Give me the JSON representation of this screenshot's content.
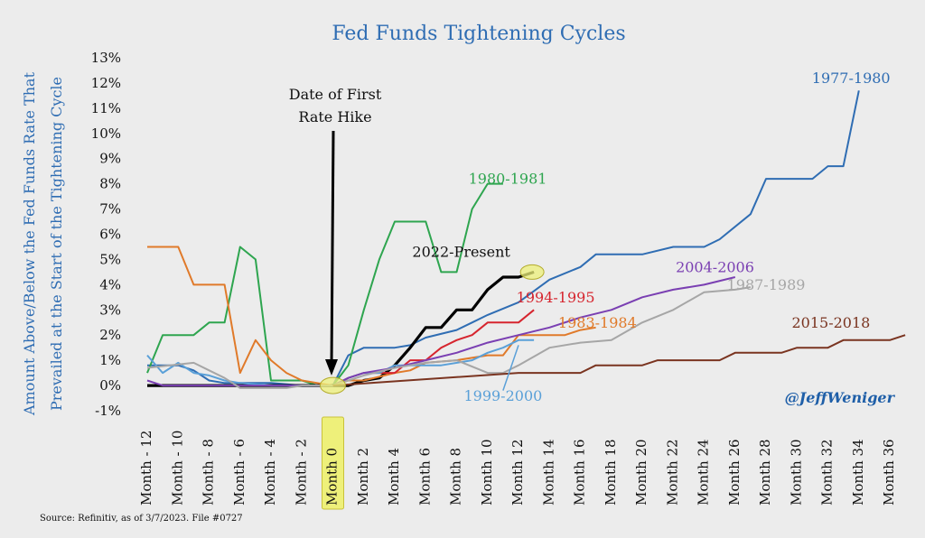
{
  "chart_data": {
    "type": "line",
    "title": "Fed Funds Tightening Cycles",
    "ylabel_line1": "Amount Above/Below the Fed Funds Rate That",
    "ylabel_line2": "Prevailed at the Start of the Tightening Cycle",
    "ylim": [
      -1,
      13
    ],
    "xlim": [
      -12,
      36
    ],
    "ytick_values": [
      -1,
      0,
      1,
      2,
      3,
      4,
      5,
      6,
      7,
      8,
      9,
      10,
      11,
      12,
      13
    ],
    "ytick_labels": [
      "-1%",
      "0%",
      "1%",
      "2%",
      "3%",
      "4%",
      "5%",
      "6%",
      "7%",
      "8%",
      "9%",
      "10%",
      "11%",
      "12%",
      "13%"
    ],
    "xtick_values": [
      -12,
      -10,
      -8,
      -6,
      -4,
      -2,
      0,
      2,
      4,
      6,
      8,
      10,
      12,
      14,
      16,
      18,
      20,
      22,
      24,
      26,
      28,
      30,
      32,
      34,
      36
    ],
    "xtick_labels": [
      "Month - 12",
      "Month - 10",
      "Month - 8",
      "Month - 6",
      "Month - 4",
      "Month - 2",
      "Month 0",
      "Month 2",
      "Month 4",
      "Month 6",
      "Month 8",
      "Month 10",
      "Month 12",
      "Month 14",
      "Month 16",
      "Month 18",
      "Month 20",
      "Month 22",
      "Month 24",
      "Month 26",
      "Month 28",
      "Month 30",
      "Month 32",
      "Month 34",
      "Month 36"
    ],
    "highlight_tick": "Month 0",
    "grid": false,
    "annotation": {
      "text_line1": "Date of First",
      "text_line2": "Rate Hike",
      "x": 0,
      "y": 0
    },
    "handle": "@JeffWeniger",
    "source": "Source: Refinitiv, as of 3/7/2023. File #0727",
    "series": [
      {
        "name": "1977-1980",
        "color": "#2f6db3",
        "points": [
          [
            -12,
            0.8
          ],
          [
            -10,
            0.8
          ],
          [
            -9,
            0.6
          ],
          [
            -8,
            0.2
          ],
          [
            -7,
            0.1
          ],
          [
            -6,
            0.1
          ],
          [
            -4,
            0.1
          ],
          [
            -2,
            0
          ],
          [
            0,
            0
          ],
          [
            1,
            1.2
          ],
          [
            2,
            1.5
          ],
          [
            4,
            1.5
          ],
          [
            5,
            1.6
          ],
          [
            6,
            1.9
          ],
          [
            8,
            2.2
          ],
          [
            9,
            2.5
          ],
          [
            10,
            2.8
          ],
          [
            12,
            3.3
          ],
          [
            14,
            4.2
          ],
          [
            16,
            4.7
          ],
          [
            17,
            5.2
          ],
          [
            20,
            5.2
          ],
          [
            22,
            5.5
          ],
          [
            24,
            5.5
          ],
          [
            25,
            5.8
          ],
          [
            27,
            6.8
          ],
          [
            28,
            8.2
          ],
          [
            31,
            8.2
          ],
          [
            32,
            8.7
          ],
          [
            33,
            8.7
          ],
          [
            34,
            11.7
          ]
        ]
      },
      {
        "name": "1980-1981",
        "color": "#2ea54f",
        "points": [
          [
            -12,
            0.5
          ],
          [
            -11,
            2
          ],
          [
            -9,
            2
          ],
          [
            -8,
            2.5
          ],
          [
            -7,
            2.5
          ],
          [
            -6,
            5.5
          ],
          [
            -5,
            5
          ],
          [
            -4,
            0.2
          ],
          [
            -2,
            0.2
          ],
          [
            -1,
            0
          ],
          [
            0,
            0
          ],
          [
            1,
            0.8
          ],
          [
            2,
            3
          ],
          [
            3,
            5
          ],
          [
            4,
            6.5
          ],
          [
            6,
            6.5
          ],
          [
            7,
            4.5
          ],
          [
            8,
            4.5
          ],
          [
            9,
            7
          ],
          [
            10,
            8
          ],
          [
            11,
            8
          ]
        ]
      },
      {
        "name": "2022-Present",
        "color": "#000000",
        "points": [
          [
            -12,
            0
          ],
          [
            -2,
            0
          ],
          [
            0,
            0
          ],
          [
            1,
            0
          ],
          [
            2,
            0.2
          ],
          [
            3,
            0.3
          ],
          [
            4,
            0.8
          ],
          [
            5,
            1.5
          ],
          [
            6,
            2.3
          ],
          [
            7,
            2.3
          ],
          [
            8,
            3
          ],
          [
            9,
            3
          ],
          [
            10,
            3.8
          ],
          [
            11,
            4.3
          ],
          [
            12,
            4.3
          ],
          [
            13,
            4.5
          ]
        ]
      },
      {
        "name": "1983-1984",
        "color": "#e07a2a",
        "points": [
          [
            -12,
            5.5
          ],
          [
            -10,
            5.5
          ],
          [
            -9,
            4
          ],
          [
            -7,
            4
          ],
          [
            -6,
            0.5
          ],
          [
            -5,
            1.8
          ],
          [
            -4,
            1
          ],
          [
            -3,
            0.5
          ],
          [
            -2,
            0.2
          ],
          [
            -1,
            0.1
          ],
          [
            0,
            0
          ],
          [
            1,
            0.2
          ],
          [
            2,
            0.2
          ],
          [
            4,
            0.5
          ],
          [
            5,
            0.6
          ],
          [
            6,
            0.9
          ],
          [
            8,
            1
          ],
          [
            10,
            1.2
          ],
          [
            11,
            1.2
          ],
          [
            12,
            2
          ],
          [
            15,
            2
          ],
          [
            16,
            2.2
          ],
          [
            17,
            2.3
          ]
        ]
      },
      {
        "name": "1994-1995",
        "color": "#d6252e",
        "points": [
          [
            0,
            0
          ],
          [
            1,
            0.3
          ],
          [
            2,
            0.5
          ],
          [
            4,
            0.5
          ],
          [
            5,
            1
          ],
          [
            6,
            1
          ],
          [
            7,
            1.5
          ],
          [
            8,
            1.8
          ],
          [
            9,
            2
          ],
          [
            10,
            2.5
          ],
          [
            12,
            2.5
          ],
          [
            13,
            3
          ]
        ]
      },
      {
        "name": "1999-2000",
        "color": "#5aa0d8",
        "points": [
          [
            -12,
            1.2
          ],
          [
            -11,
            0.5
          ],
          [
            -10,
            0.9
          ],
          [
            -9,
            0.5
          ],
          [
            -8,
            0.4
          ],
          [
            -7,
            0.2
          ],
          [
            -6,
            0.1
          ],
          [
            -4,
            0
          ],
          [
            -2,
            0
          ],
          [
            0,
            0
          ],
          [
            1,
            0.3
          ],
          [
            2,
            0.5
          ],
          [
            3,
            0.5
          ],
          [
            4,
            0.8
          ],
          [
            5,
            0.8
          ],
          [
            6,
            0.8
          ],
          [
            7,
            0.8
          ],
          [
            9,
            1
          ],
          [
            10,
            1.3
          ],
          [
            11,
            1.5
          ],
          [
            12,
            1.8
          ],
          [
            13,
            1.8
          ]
        ]
      },
      {
        "name": "2004-2006",
        "color": "#7a3fb2",
        "points": [
          [
            -12,
            0.2
          ],
          [
            -11,
            0
          ],
          [
            0,
            0
          ],
          [
            1,
            0.3
          ],
          [
            2,
            0.5
          ],
          [
            4,
            0.7
          ],
          [
            6,
            1
          ],
          [
            8,
            1.3
          ],
          [
            10,
            1.7
          ],
          [
            12,
            2
          ],
          [
            14,
            2.3
          ],
          [
            16,
            2.7
          ],
          [
            18,
            3
          ],
          [
            20,
            3.5
          ],
          [
            22,
            3.8
          ],
          [
            24,
            4
          ],
          [
            26,
            4.3
          ]
        ]
      },
      {
        "name": "1987-1989",
        "color": "#a6a6a6",
        "points": [
          [
            -12,
            0.7
          ],
          [
            -9,
            0.9
          ],
          [
            -8,
            0.6
          ],
          [
            -7,
            0.3
          ],
          [
            -6,
            -0.1
          ],
          [
            -4,
            -0.1
          ],
          [
            -3,
            -0.1
          ],
          [
            -2,
            0
          ],
          [
            0,
            0
          ],
          [
            1,
            0.2
          ],
          [
            2,
            0.4
          ],
          [
            4,
            0.7
          ],
          [
            6,
            0.9
          ],
          [
            8,
            1
          ],
          [
            10,
            0.5
          ],
          [
            11,
            0.5
          ],
          [
            12,
            0.8
          ],
          [
            14,
            1.5
          ],
          [
            16,
            1.7
          ],
          [
            18,
            1.8
          ],
          [
            20,
            2.5
          ],
          [
            22,
            3
          ],
          [
            24,
            3.7
          ],
          [
            26,
            3.8
          ],
          [
            27,
            3.9
          ]
        ]
      },
      {
        "name": "2015-2018",
        "color": "#7a3420",
        "points": [
          [
            0,
            0
          ],
          [
            12,
            0.5
          ],
          [
            16,
            0.5
          ],
          [
            17,
            0.8
          ],
          [
            20,
            0.8
          ],
          [
            21,
            1
          ],
          [
            25,
            1
          ],
          [
            26,
            1.3
          ],
          [
            29,
            1.3
          ],
          [
            30,
            1.5
          ],
          [
            32,
            1.5
          ],
          [
            33,
            1.8
          ],
          [
            36,
            1.8
          ],
          [
            37,
            2
          ]
        ]
      }
    ],
    "series_labels": [
      {
        "name": "1977-1980",
        "x": 33.5,
        "y": 12.0
      },
      {
        "name": "1980-1981",
        "x": 11.3,
        "y": 8.0
      },
      {
        "name": "2022-Present",
        "x": 8.3,
        "y": 5.1
      },
      {
        "name": "2004-2006",
        "x": 24.7,
        "y": 4.5
      },
      {
        "name": "1987-1989",
        "x": 28.0,
        "y": 3.8
      },
      {
        "name": "1994-1995",
        "x": 14.4,
        "y": 3.3
      },
      {
        "name": "1983-1984",
        "x": 17.1,
        "y": 2.3
      },
      {
        "name": "2015-2018",
        "x": 32.2,
        "y": 2.3
      },
      {
        "name": "1999-2000",
        "x": 11.0,
        "y": -0.6
      }
    ]
  }
}
